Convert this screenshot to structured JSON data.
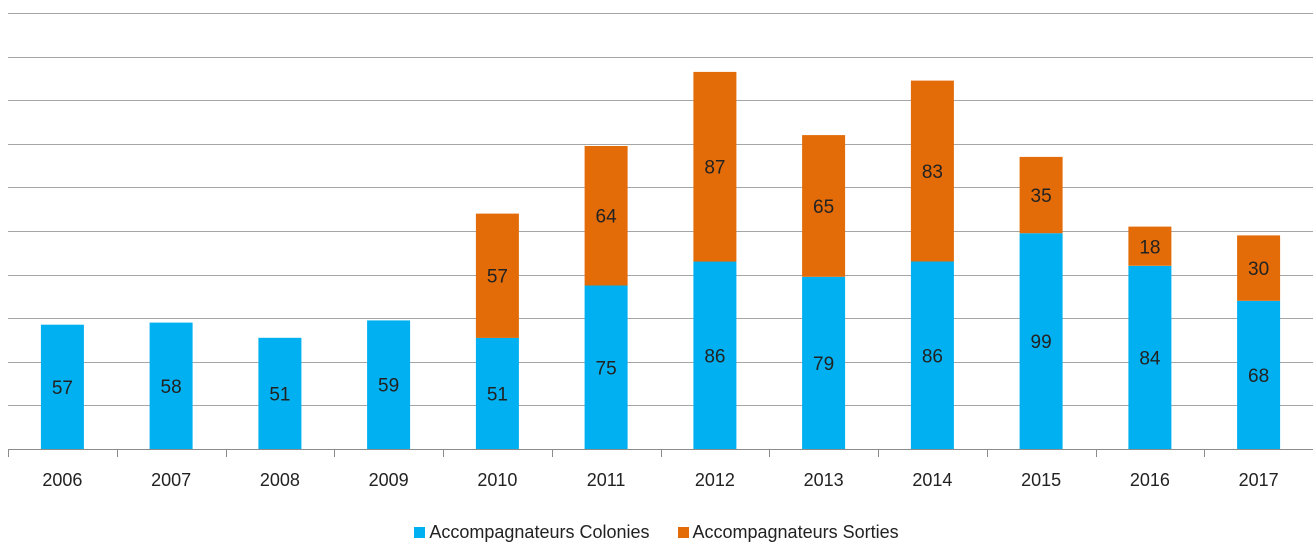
{
  "chart_data": {
    "type": "bar",
    "stacked": true,
    "title": "",
    "xlabel": "",
    "ylabel": "",
    "ylim": [
      0,
      200
    ],
    "y_tick_step": 20,
    "y_tick_labels_shown": false,
    "grid": true,
    "legend_position": "bottom",
    "categories": [
      "2006",
      "2007",
      "2008",
      "2009",
      "2010",
      "2011",
      "2012",
      "2013",
      "2014",
      "2015",
      "2016",
      "2017"
    ],
    "series": [
      {
        "name": "Accompagnateurs Colonies",
        "color": "#00b0f0",
        "values": [
          57,
          58,
          51,
          59,
          51,
          75,
          86,
          79,
          86,
          99,
          84,
          68
        ]
      },
      {
        "name": "Accompagnateurs Sorties",
        "color": "#e36c09",
        "values": [
          0,
          0,
          0,
          0,
          57,
          64,
          87,
          65,
          83,
          35,
          18,
          30
        ]
      }
    ],
    "data_labels": {
      "Accompagnateurs Colonies": [
        "57",
        "58",
        "51",
        "59",
        "51",
        "75",
        "86",
        "79",
        "86",
        "99",
        "84",
        "68"
      ],
      "Accompagnateurs Sorties": [
        "",
        "",
        "",
        "",
        "57",
        "64",
        "87",
        "65",
        "83",
        "35",
        "18",
        "30"
      ]
    }
  },
  "legend": {
    "items": [
      {
        "label": "Accompagnateurs Colonies",
        "color": "#00b0f0"
      },
      {
        "label": "Accompagnateurs Sorties",
        "color": "#e36c09"
      }
    ]
  },
  "colors": {
    "gridline": "#a6a6a6",
    "axis": "#8c8c8c",
    "text": "#222222"
  }
}
